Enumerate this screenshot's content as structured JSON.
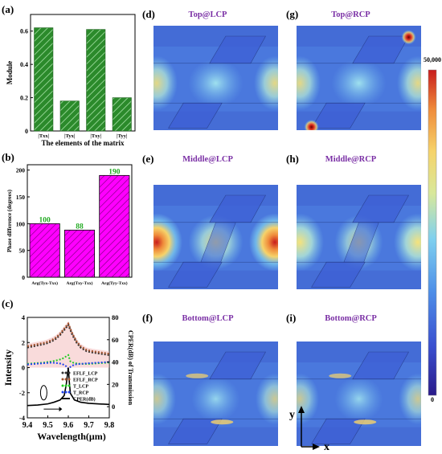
{
  "colors": {
    "bar_green": "#2b8a2b",
    "bar_green_hatch": "#8fd18f",
    "bar_magenta": "#ff00ff",
    "bar_magenta_hatch": "#7a007a",
    "bar_value_label": "#22aa22",
    "map_title": "#7a2fa5",
    "curve_lcp_flf": "#333333",
    "curve_rcp_flf": "#a0522d",
    "curve_t_lcp": "#22cc22",
    "curve_t_rcp": "#2244ee",
    "curve_cper": "#000000",
    "fill_under": "#f4b8b8"
  },
  "panel_labels": {
    "a": "(a)",
    "b": "(b)",
    "c": "(c)",
    "d": "(d)",
    "e": "(e)",
    "f": "(f)",
    "g": "(g)",
    "h": "(h)",
    "i": "(i)"
  },
  "chart_data": [
    {
      "panel": "a",
      "type": "bar",
      "categories": [
        "|Txx|",
        "|Tyx|",
        "|Txy|",
        "|Tyy|"
      ],
      "values": [
        0.62,
        0.18,
        0.61,
        0.2
      ],
      "ylabel": "Module",
      "xlabel": "The elements of the matrix",
      "ylim": [
        0,
        0.7
      ],
      "yticks": [
        "0",
        "0.2",
        "0.4",
        "0.6"
      ]
    },
    {
      "panel": "b",
      "type": "bar",
      "categories": [
        "Arg(Tyx-Txx)",
        "Arg(Txy-Txx)",
        "Arg(Tyy-Txx)"
      ],
      "values": [
        100,
        88,
        190
      ],
      "data_labels": [
        "100",
        "88",
        "190"
      ],
      "ylabel": "Phase difference (degrees)",
      "ylim": [
        0,
        210
      ],
      "yticks": [
        "0",
        "50",
        "100",
        "150",
        "200"
      ]
    },
    {
      "panel": "c",
      "type": "line",
      "xlabel": "Wavelength(μm)",
      "ylabel_left": "Intensity",
      "ylabel_right": "CPER(dB) of Transmission",
      "xlim": [
        9.4,
        9.8
      ],
      "ylim_left": [
        -4,
        4
      ],
      "ylim_right": [
        -10,
        80
      ],
      "xticks": [
        "9.4",
        "9.5",
        "9.6",
        "9.7",
        "9.8"
      ],
      "yticks_left": [
        "-4",
        "-2",
        "0",
        "2",
        "4"
      ],
      "yticks_right": [
        "0",
        "20",
        "40",
        "60",
        "80"
      ],
      "legend": [
        "EFLF_LCP",
        "EFLF_RCP",
        "T_LCP",
        "T_RCP",
        "CPER(dB)"
      ],
      "series": [
        {
          "name": "EFLF_LCP",
          "axis": "left",
          "x": [
            9.4,
            9.43,
            9.46,
            9.49,
            9.52,
            9.54,
            9.56,
            9.58,
            9.6,
            9.62,
            9.64,
            9.66,
            9.69,
            9.72,
            9.76,
            9.8
          ],
          "y": [
            1.6,
            1.7,
            1.8,
            1.9,
            2.1,
            2.3,
            2.6,
            3.0,
            3.4,
            2.6,
            2.0,
            1.6,
            1.3,
            1.2,
            1.1,
            1.0
          ]
        },
        {
          "name": "EFLF_RCP",
          "axis": "left",
          "x": [
            9.4,
            9.43,
            9.46,
            9.49,
            9.52,
            9.54,
            9.56,
            9.58,
            9.6,
            9.62,
            9.64,
            9.66,
            9.69,
            9.72,
            9.76,
            9.8
          ],
          "y": [
            1.7,
            1.8,
            1.9,
            2.0,
            2.2,
            2.4,
            2.7,
            3.1,
            3.5,
            2.7,
            2.1,
            1.7,
            1.4,
            1.3,
            1.2,
            1.1
          ]
        },
        {
          "name": "T_LCP",
          "axis": "left",
          "x": [
            9.4,
            9.44,
            9.48,
            9.52,
            9.55,
            9.57,
            9.59,
            9.6,
            9.61,
            9.63,
            9.66,
            9.7,
            9.75,
            9.8
          ],
          "y": [
            0.3,
            0.35,
            0.4,
            0.5,
            0.6,
            0.7,
            0.9,
            1.0,
            0.5,
            0.35,
            0.3,
            0.3,
            0.35,
            0.4
          ]
        },
        {
          "name": "T_RCP",
          "axis": "left",
          "x": [
            9.4,
            9.44,
            9.48,
            9.52,
            9.55,
            9.57,
            9.59,
            9.6,
            9.61,
            9.63,
            9.66,
            9.7,
            9.75,
            9.8
          ],
          "y": [
            0.25,
            0.3,
            0.35,
            0.4,
            0.35,
            0.3,
            0.1,
            -0.1,
            0.05,
            0.25,
            0.3,
            0.35,
            0.4,
            0.45
          ]
        },
        {
          "name": "CPER(dB)",
          "axis": "right",
          "x": [
            9.4,
            9.45,
            9.5,
            9.53,
            9.56,
            9.58,
            9.59,
            9.6,
            9.605,
            9.61,
            9.63,
            9.66,
            9.7,
            9.75,
            9.8
          ],
          "y": [
            1,
            1.5,
            2.5,
            4,
            6,
            10,
            20,
            35,
            22,
            12,
            6,
            4,
            3,
            2.5,
            2
          ]
        }
      ]
    }
  ],
  "field_maps": {
    "titles": {
      "d": "Top@LCP",
      "g": "Top@RCP",
      "e": "Middle@LCP",
      "h": "Middle@RCP",
      "f": "Bottom@LCP",
      "i": "Bottom@RCP"
    },
    "colorbar": {
      "max": "50,000",
      "min": "0",
      "colors": [
        "#2a1a8a",
        "#3a4fcf",
        "#4e8fe8",
        "#7fd0ef",
        "#d8e89a",
        "#f6d36a",
        "#ef8a3a",
        "#c81c1c"
      ]
    },
    "axes": {
      "y": "y",
      "x": "x"
    }
  }
}
